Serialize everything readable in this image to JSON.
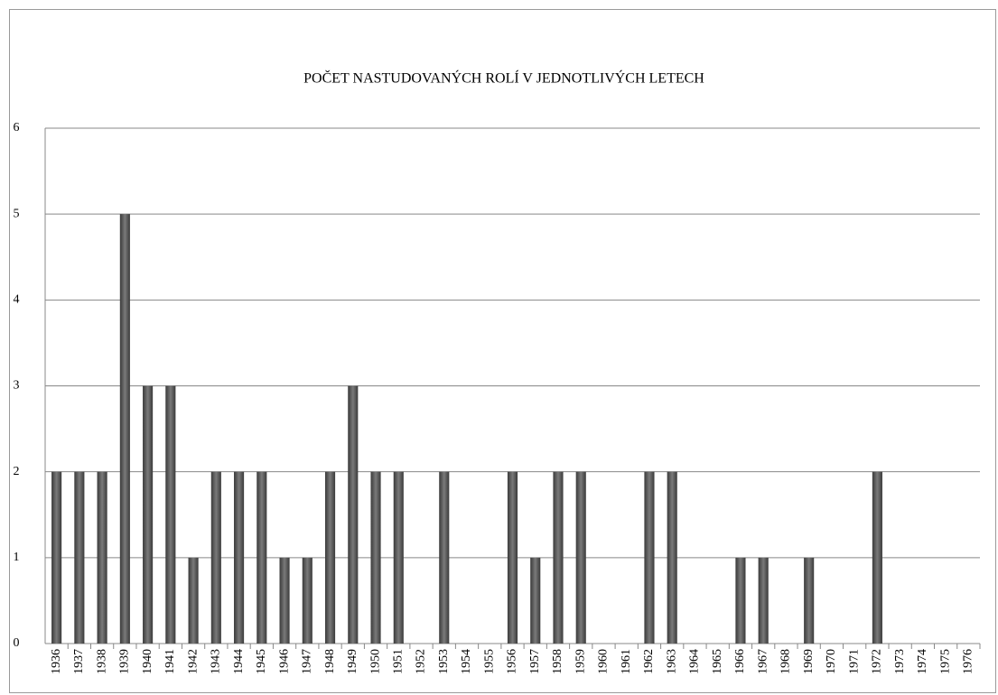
{
  "chart_data": {
    "type": "bar",
    "title": "POČET NASTUDOVANÝCH ROLÍ V JEDNOTLIVÝCH LETECH",
    "categories": [
      "1936",
      "1937",
      "1938",
      "1939",
      "1940",
      "1941",
      "1942",
      "1943",
      "1944",
      "1945",
      "1946",
      "1947",
      "1948",
      "1949",
      "1950",
      "1951",
      "1952",
      "1953",
      "1954",
      "1955",
      "1956",
      "1957",
      "1958",
      "1959",
      "1960",
      "1961",
      "1962",
      "1963",
      "1964",
      "1965",
      "1966",
      "1967",
      "1968",
      "1969",
      "1970",
      "1971",
      "1972",
      "1973",
      "1974",
      "1975",
      "1976"
    ],
    "values": [
      2,
      2,
      2,
      5,
      3,
      3,
      1,
      2,
      2,
      2,
      1,
      1,
      2,
      3,
      2,
      2,
      0,
      2,
      0,
      0,
      2,
      1,
      2,
      2,
      0,
      0,
      2,
      2,
      0,
      0,
      1,
      1,
      0,
      1,
      0,
      0,
      2,
      0,
      0,
      0,
      0
    ],
    "color": "#555555",
    "ylim": [
      0,
      6
    ],
    "yticks": [
      0,
      1,
      2,
      3,
      4,
      5,
      6
    ],
    "grid": true
  }
}
